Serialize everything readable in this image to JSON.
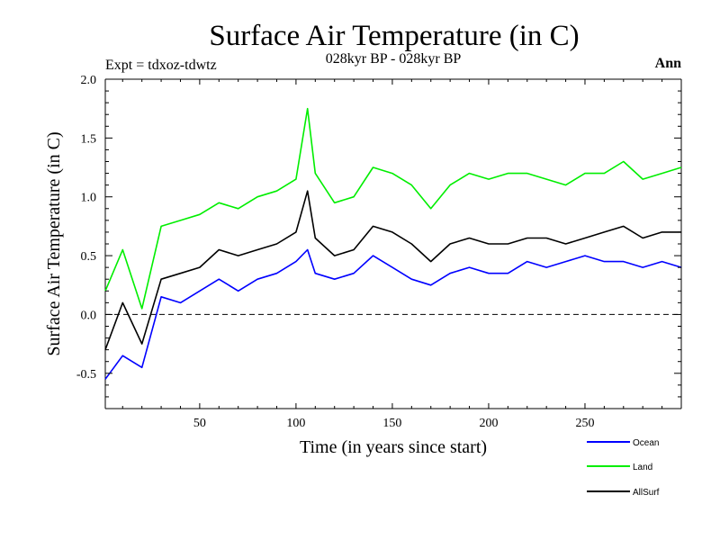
{
  "chart_data": {
    "type": "line",
    "title": "Surface Air Temperature (in C)",
    "subtitle": "028kyr BP - 028kyr BP",
    "experiment_label": "Expt = tdxoz-tdwtz",
    "period_label": "Ann",
    "xlabel": "Time (in years since start)",
    "ylabel": "Surface Air Temperature (in C)",
    "xlim": [
      1,
      300
    ],
    "ylim": [
      -0.8,
      2.0
    ],
    "xticks": [
      50,
      100,
      150,
      200,
      250
    ],
    "xtick_labels": [
      "50",
      "100",
      "150",
      "200",
      "250"
    ],
    "yticks": [
      -0.5,
      0.0,
      0.5,
      1.0,
      1.5,
      2.0
    ],
    "ytick_labels": [
      "-0.5",
      "0.0",
      "0.5",
      "1.0",
      "1.5",
      "2.0"
    ],
    "reference_line": {
      "y": 0.0,
      "style": "dashed"
    },
    "grid": false,
    "legend_position": "bottom-right, below plot",
    "series": [
      {
        "name": "Ocean",
        "color": "#0000ff",
        "x": [
          1,
          10,
          20,
          30,
          40,
          50,
          60,
          70,
          80,
          90,
          100,
          106,
          110,
          120,
          130,
          140,
          150,
          160,
          170,
          180,
          190,
          200,
          210,
          220,
          230,
          240,
          250,
          260,
          270,
          280,
          290,
          300
        ],
        "values": [
          -0.55,
          -0.35,
          -0.45,
          0.15,
          0.1,
          0.2,
          0.3,
          0.2,
          0.3,
          0.35,
          0.45,
          0.55,
          0.35,
          0.3,
          0.35,
          0.5,
          0.4,
          0.3,
          0.25,
          0.35,
          0.4,
          0.35,
          0.35,
          0.45,
          0.4,
          0.45,
          0.5,
          0.45,
          0.45,
          0.4,
          0.45,
          0.4
        ]
      },
      {
        "name": "Land",
        "color": "#00ee00",
        "x": [
          1,
          10,
          20,
          30,
          40,
          50,
          60,
          70,
          80,
          90,
          100,
          106,
          110,
          120,
          130,
          140,
          150,
          160,
          170,
          180,
          190,
          200,
          210,
          220,
          230,
          240,
          250,
          260,
          270,
          280,
          290,
          300
        ],
        "values": [
          0.2,
          0.55,
          0.05,
          0.75,
          0.8,
          0.85,
          0.95,
          0.9,
          1.0,
          1.05,
          1.15,
          1.75,
          1.2,
          0.95,
          1.0,
          1.25,
          1.2,
          1.1,
          0.9,
          1.1,
          1.2,
          1.15,
          1.2,
          1.2,
          1.15,
          1.1,
          1.2,
          1.2,
          1.3,
          1.15,
          1.2,
          1.25
        ]
      },
      {
        "name": "AllSurf",
        "color": "#000000",
        "x": [
          1,
          10,
          20,
          30,
          40,
          50,
          60,
          70,
          80,
          90,
          100,
          106,
          110,
          120,
          130,
          140,
          150,
          160,
          170,
          180,
          190,
          200,
          210,
          220,
          230,
          240,
          250,
          260,
          270,
          280,
          290,
          300
        ],
        "values": [
          -0.3,
          0.1,
          -0.25,
          0.3,
          0.35,
          0.4,
          0.55,
          0.5,
          0.55,
          0.6,
          0.7,
          1.05,
          0.65,
          0.5,
          0.55,
          0.75,
          0.7,
          0.6,
          0.45,
          0.6,
          0.65,
          0.6,
          0.6,
          0.65,
          0.65,
          0.6,
          0.65,
          0.7,
          0.75,
          0.65,
          0.7,
          0.7
        ]
      }
    ]
  }
}
